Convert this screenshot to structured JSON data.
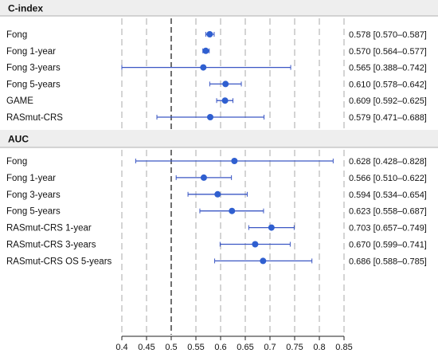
{
  "colors": {
    "point": "#2f5fd0",
    "interval": "#3b57c4",
    "gridline": "#a8a8a8",
    "reference_line": "#222222",
    "panel_header_bg": "#eeeeee",
    "panel_rule": "#b0b0b0"
  },
  "chart_data": [
    {
      "type": "forest",
      "title": "C-index",
      "xlim": [
        0.4,
        0.85
      ],
      "reference_value": 0.5,
      "grid": "dashed vertical at each tick",
      "rows": [
        {
          "label": "Fong",
          "estimate": 0.578,
          "lower": 0.57,
          "upper": 0.587,
          "text": "0.578 [0.570–0.587]"
        },
        {
          "label": "Fong 1-year",
          "estimate": 0.57,
          "lower": 0.564,
          "upper": 0.577,
          "text": "0.570 [0.564–0.577]"
        },
        {
          "label": "Fong 3-years",
          "estimate": 0.565,
          "lower": 0.388,
          "upper": 0.742,
          "text": "0.565 [0.388–0.742]"
        },
        {
          "label": "Fong 5-years",
          "estimate": 0.61,
          "lower": 0.578,
          "upper": 0.642,
          "text": "0.610 [0.578–0.642]"
        },
        {
          "label": "GAME",
          "estimate": 0.609,
          "lower": 0.592,
          "upper": 0.625,
          "text": "0.609 [0.592–0.625]"
        },
        {
          "label": "RASmut-CRS",
          "estimate": 0.579,
          "lower": 0.471,
          "upper": 0.688,
          "text": "0.579 [0.471–0.688]"
        }
      ]
    },
    {
      "type": "forest",
      "title": "AUC",
      "xlim": [
        0.4,
        0.85
      ],
      "reference_value": 0.5,
      "grid": "dashed vertical at each tick",
      "rows": [
        {
          "label": "Fong",
          "estimate": 0.628,
          "lower": 0.428,
          "upper": 0.828,
          "text": "0.628 [0.428–0.828]"
        },
        {
          "label": "Fong 1-year",
          "estimate": 0.566,
          "lower": 0.51,
          "upper": 0.622,
          "text": "0.566 [0.510–0.622]"
        },
        {
          "label": "Fong 3-years",
          "estimate": 0.594,
          "lower": 0.534,
          "upper": 0.654,
          "text": "0.594 [0.534–0.654]"
        },
        {
          "label": "Fong 5-years",
          "estimate": 0.623,
          "lower": 0.558,
          "upper": 0.687,
          "text": "0.623 [0.558–0.687]"
        },
        {
          "label": "RASmut-CRS 1-year",
          "estimate": 0.703,
          "lower": 0.657,
          "upper": 0.749,
          "text": "0.703 [0.657–0.749]"
        },
        {
          "label": "RASmut-CRS 3-years",
          "estimate": 0.67,
          "lower": 0.599,
          "upper": 0.741,
          "text": "0.670 [0.599–0.741]"
        },
        {
          "label": "RASmut-CRS OS 5-years",
          "estimate": 0.686,
          "lower": 0.588,
          "upper": 0.785,
          "text": "0.686 [0.588–0.785]"
        }
      ]
    }
  ],
  "x_axis": {
    "ticks": [
      0.4,
      0.45,
      0.5,
      0.55,
      0.6,
      0.65,
      0.7,
      0.75,
      0.8,
      0.85
    ],
    "tick_labels": [
      "0.4",
      "0.45",
      "0.5",
      "0.55",
      "0.6",
      "0.65",
      "0.7",
      "0.75",
      "0.8",
      "0.85"
    ]
  }
}
